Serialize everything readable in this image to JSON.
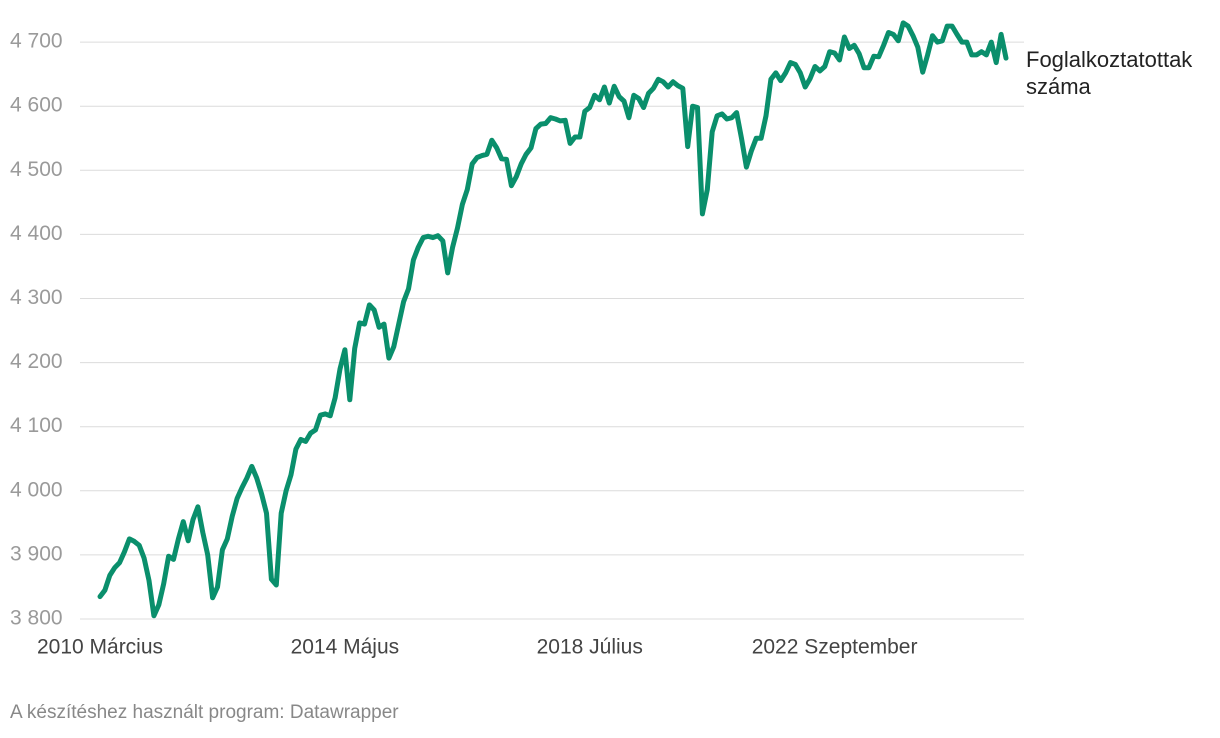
{
  "chart_data": {
    "type": "line",
    "categories": [
      "2010 Március",
      null,
      null,
      null,
      null,
      null,
      null,
      null,
      null,
      null,
      null,
      null,
      null,
      null,
      null,
      null,
      null,
      null,
      null,
      null,
      null,
      null,
      null,
      null,
      null,
      null,
      null,
      null,
      null,
      null,
      null,
      null,
      null,
      null,
      null,
      null,
      null,
      null,
      null,
      null,
      null,
      null,
      null,
      null,
      null,
      null,
      null,
      null,
      null,
      null,
      "2014 Május",
      null,
      null,
      null,
      null,
      null,
      null,
      null,
      null,
      null,
      null,
      null,
      null,
      null,
      null,
      null,
      null,
      null,
      null,
      null,
      null,
      null,
      null,
      null,
      null,
      null,
      null,
      null,
      null,
      null,
      null,
      null,
      null,
      null,
      null,
      null,
      null,
      null,
      null,
      null,
      null,
      null,
      null,
      null,
      null,
      null,
      null,
      null,
      null,
      null,
      "2018 Július",
      null,
      null,
      null,
      null,
      null,
      null,
      null,
      null,
      null,
      null,
      null,
      null,
      null,
      null,
      null,
      null,
      null,
      null,
      null,
      null,
      null,
      null,
      null,
      null,
      null,
      null,
      null,
      null,
      null,
      null,
      null,
      null,
      null,
      null,
      null,
      null,
      null,
      null,
      null,
      null,
      null,
      null,
      null,
      null,
      null,
      null,
      null,
      null,
      null,
      "2022 Szeptember",
      null,
      null,
      null,
      null,
      null,
      null,
      null,
      null,
      null,
      null,
      null,
      null,
      null,
      null,
      null,
      null,
      null,
      null,
      null,
      null,
      null,
      null,
      null,
      null,
      null,
      null,
      null,
      null,
      null,
      null,
      null,
      null,
      null,
      null,
      null
    ],
    "series": [
      {
        "name": "Foglalkoztatottak száma",
        "color": "#0a8f6c",
        "values": [
          3835,
          3845,
          3868,
          3880,
          3888,
          3905,
          3925,
          3921,
          3915,
          3895,
          3860,
          3805,
          3822,
          3855,
          3898,
          3893,
          3925,
          3952,
          3922,
          3955,
          3975,
          3935,
          3900,
          3833,
          3850,
          3908,
          3925,
          3960,
          3988,
          4005,
          4020,
          4038,
          4020,
          3995,
          3965,
          3862,
          3853,
          3965,
          4000,
          4025,
          4065,
          4080,
          4077,
          4090,
          4095,
          4118,
          4120,
          4117,
          4145,
          4190,
          4220,
          4142,
          4222,
          4262,
          4260,
          4290,
          4282,
          4255,
          4260,
          4207,
          4225,
          4260,
          4295,
          4315,
          4360,
          4380,
          4395,
          4397,
          4395,
          4398,
          4390,
          4340,
          4380,
          4410,
          4447,
          4470,
          4510,
          4520,
          4523,
          4525,
          4547,
          4535,
          4518,
          4517,
          4476,
          4490,
          4510,
          4525,
          4535,
          4565,
          4572,
          4573,
          4582,
          4580,
          4577,
          4578,
          4542,
          4552,
          4552,
          4592,
          4598,
          4617,
          4610,
          4630,
          4605,
          4631,
          4615,
          4608,
          4582,
          4617,
          4612,
          4598,
          4620,
          4628,
          4642,
          4638,
          4630,
          4638,
          4632,
          4628,
          4537,
          4600,
          4598,
          4432,
          4470,
          4560,
          4585,
          4588,
          4580,
          4582,
          4590,
          4550,
          4505,
          4530,
          4550,
          4550,
          4585,
          4642,
          4652,
          4640,
          4652,
          4668,
          4665,
          4652,
          4630,
          4643,
          4662,
          4655,
          4662,
          4685,
          4683,
          4672,
          4708,
          4690,
          4695,
          4682,
          4660,
          4660,
          4678,
          4677,
          4695,
          4715,
          4712,
          4702,
          4730,
          4725,
          4710,
          4692,
          4653,
          4680,
          4710,
          4700,
          4702,
          4725,
          4725,
          4712,
          4700,
          4700,
          4680,
          4680,
          4685,
          4680,
          4700,
          4668,
          4712,
          4675
        ]
      }
    ],
    "ylim": [
      3800,
      4740
    ],
    "yticks": [
      {
        "value": 3800,
        "label": "3 800"
      },
      {
        "value": 3900,
        "label": "3 900"
      },
      {
        "value": 4000,
        "label": "4 000"
      },
      {
        "value": 4100,
        "label": "4 100"
      },
      {
        "value": 4200,
        "label": "4 200"
      },
      {
        "value": 4300,
        "label": "4 300"
      },
      {
        "value": 4400,
        "label": "4 400"
      },
      {
        "value": 4500,
        "label": "4 500"
      },
      {
        "value": 4600,
        "label": "4 600"
      },
      {
        "value": 4700,
        "label": "4 700"
      }
    ],
    "grid": true,
    "source": "A készítéshez használt program: Datawrapper"
  }
}
